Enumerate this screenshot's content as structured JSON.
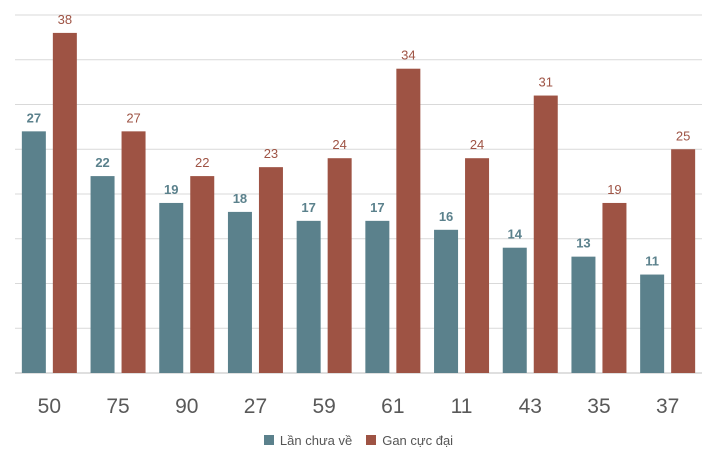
{
  "chart_data": {
    "type": "bar",
    "categories": [
      "50",
      "75",
      "90",
      "27",
      "59",
      "61",
      "11",
      "43",
      "35",
      "37"
    ],
    "series": [
      {
        "name": "Lần chưa về",
        "values": [
          27,
          22,
          19,
          18,
          17,
          17,
          16,
          14,
          13,
          11
        ],
        "color": "#5b818c"
      },
      {
        "name": "Gan cực đại",
        "values": [
          38,
          27,
          22,
          23,
          24,
          34,
          24,
          31,
          19,
          25
        ],
        "color": "#9e5344"
      }
    ],
    "ylim": [
      0,
      40
    ],
    "grid": true,
    "legend_position": "bottom",
    "title": "",
    "xlabel": "",
    "ylabel": ""
  }
}
